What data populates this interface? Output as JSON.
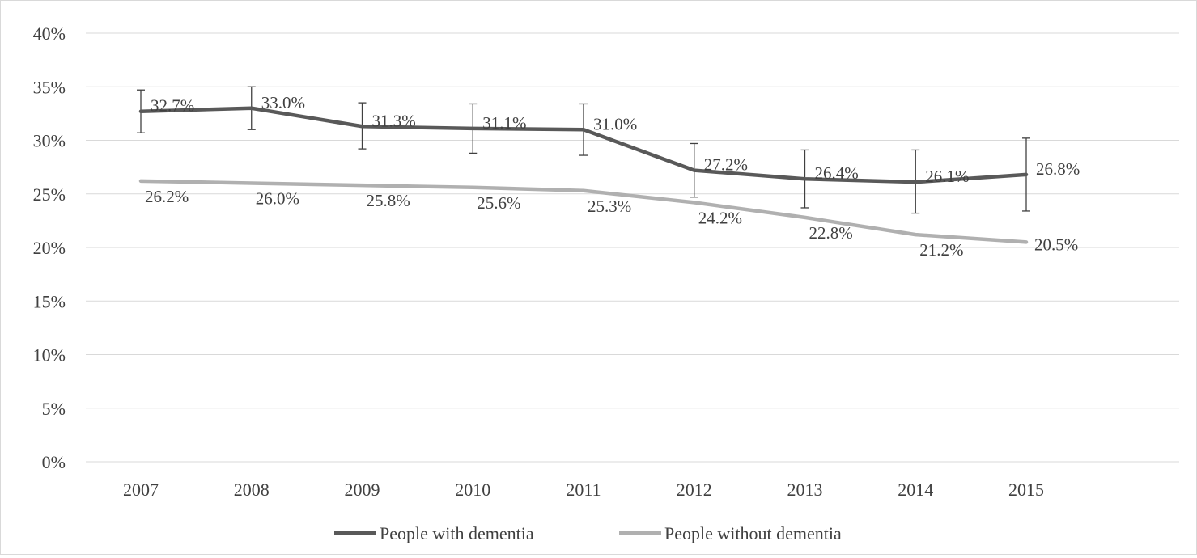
{
  "chart_data": {
    "type": "line",
    "categories": [
      "2007",
      "2008",
      "2009",
      "2010",
      "2011",
      "2012",
      "2013",
      "2014",
      "2015"
    ],
    "series": [
      {
        "name": "People with dementia",
        "values": [
          32.7,
          33.0,
          31.3,
          31.1,
          31.0,
          27.2,
          26.4,
          26.1,
          26.8
        ],
        "labels": [
          "32.7%",
          "33.0%",
          "31.3%",
          "31.1%",
          "31.0%",
          "27.2%",
          "26.4%",
          "26.1%",
          "26.8%"
        ],
        "error_low": [
          30.7,
          31.0,
          29.2,
          28.8,
          28.6,
          24.7,
          23.7,
          23.2,
          23.4
        ],
        "error_high": [
          34.7,
          35.0,
          33.5,
          33.4,
          33.4,
          29.7,
          29.1,
          29.1,
          30.2
        ],
        "color": "#595959"
      },
      {
        "name": "People without dementia",
        "values": [
          26.2,
          26.0,
          25.8,
          25.6,
          25.3,
          24.2,
          22.8,
          21.2,
          20.5
        ],
        "labels": [
          "26.2%",
          "26.0%",
          "25.8%",
          "25.6%",
          "25.3%",
          "24.2%",
          "22.8%",
          "21.2%",
          "20.5%"
        ],
        "color": "#b0b0b0"
      }
    ],
    "yticks": [
      "0%",
      "5%",
      "10%",
      "15%",
      "20%",
      "25%",
      "30%",
      "35%",
      "40%"
    ],
    "ylim": [
      0,
      40
    ],
    "grid": true,
    "legend": "bottom"
  }
}
